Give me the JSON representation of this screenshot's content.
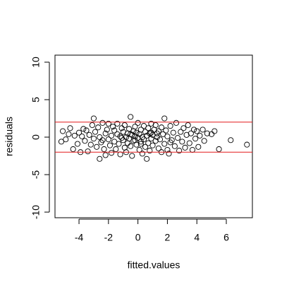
{
  "chart_data": {
    "type": "scatter",
    "x_label": "fitted.values",
    "y_label": "residuals",
    "xlim": [
      -5.63,
      7.77
    ],
    "ylim": [
      -10.75,
      10.94
    ],
    "xticks": [
      -4,
      -2,
      0,
      2,
      4,
      6
    ],
    "yticks": [
      -10,
      -5,
      0,
      5,
      10
    ],
    "color": "#000000",
    "hlines": [
      2,
      -2
    ],
    "hline_color": "#e41a1c",
    "x": [
      -5.1,
      -5.2,
      -4.9,
      -4.7,
      -4.6,
      -4.4,
      -4.3,
      -4.1,
      -4.0,
      -3.9,
      -3.8,
      -3.7,
      -3.6,
      -3.5,
      -3.4,
      -3.3,
      -3.2,
      -3.1,
      -3.0,
      -3.0,
      -2.9,
      -2.8,
      -2.7,
      -2.6,
      -2.6,
      -2.5,
      -2.4,
      -2.3,
      -2.2,
      -2.2,
      -2.1,
      -2.0,
      -2.0,
      -1.9,
      -1.8,
      -1.8,
      -1.7,
      -1.6,
      -1.6,
      -1.5,
      -1.4,
      -1.4,
      -1.3,
      -1.2,
      -1.2,
      -1.1,
      -1.0,
      -1.0,
      -0.9,
      -0.9,
      -0.8,
      -0.8,
      -0.7,
      -0.7,
      -0.6,
      -0.6,
      -0.5,
      -0.5,
      -0.4,
      -0.4,
      -0.3,
      -0.3,
      -0.2,
      -0.2,
      -0.1,
      -0.1,
      0.0,
      0.0,
      0.1,
      0.1,
      0.2,
      0.2,
      0.3,
      0.3,
      0.4,
      0.4,
      0.5,
      0.5,
      0.6,
      0.6,
      0.7,
      0.7,
      0.8,
      0.8,
      0.9,
      0.9,
      1.0,
      1.0,
      1.1,
      1.2,
      1.2,
      1.3,
      1.4,
      1.4,
      1.5,
      1.6,
      1.6,
      1.7,
      1.8,
      1.8,
      1.9,
      2.0,
      2.0,
      2.1,
      2.2,
      2.3,
      2.4,
      2.5,
      2.6,
      2.7,
      2.8,
      2.9,
      3.0,
      3.1,
      3.2,
      3.3,
      3.4,
      3.5,
      3.6,
      3.7,
      3.8,
      3.9,
      4.0,
      4.1,
      4.2,
      4.4,
      4.5,
      4.7,
      5.0,
      5.2,
      5.5,
      6.3,
      7.4,
      -0.5,
      0.2,
      -1.1,
      0.9,
      -0.2,
      1.3,
      -2.4,
      2.2
    ],
    "y": [
      0.8,
      -0.6,
      -0.3,
      0.4,
      1.2,
      -1.6,
      0.2,
      -0.9,
      0.6,
      -2.0,
      0.1,
      1.1,
      -0.5,
      0.9,
      -1.9,
      0.3,
      -1.0,
      1.6,
      2.5,
      -0.2,
      0.7,
      -1.3,
      1.3,
      -2.9,
      0.0,
      -0.7,
      1.9,
      -1.6,
      0.5,
      -2.4,
      1.0,
      -0.3,
      1.8,
      -1.1,
      0.2,
      -2.1,
      1.4,
      -0.6,
      0.9,
      -1.6,
      0.4,
      1.8,
      -0.9,
      0.1,
      -2.3,
      1.2,
      -0.4,
      0.7,
      -1.4,
      1.6,
      0.0,
      -2.0,
      0.5,
      -0.8,
      1.1,
      -0.2,
      2.7,
      -1.2,
      0.3,
      -2.5,
      0.8,
      -0.5,
      1.4,
      0.1,
      -1.0,
      0.6,
      -0.1,
      1.9,
      -1.7,
      0.4,
      -0.6,
      1.0,
      0.0,
      -2.2,
      1.5,
      -0.3,
      0.7,
      -1.3,
      -2.9,
      0.2,
      1.2,
      -0.8,
      0.5,
      -1.8,
      1.8,
      -0.2,
      0.3,
      -1.1,
      1.0,
      -0.5,
      1.6,
      0.0,
      -1.5,
      0.8,
      -0.3,
      1.3,
      -2.0,
      0.4,
      2.5,
      -0.9,
      0.9,
      -1.7,
      0.1,
      -2.2,
      1.5,
      -0.4,
      0.6,
      -1.2,
      1.9,
      -0.1,
      -1.8,
      0.7,
      -0.6,
      1.2,
      -1.4,
      0.3,
      1.6,
      -0.8,
      0.5,
      -1.7,
      1.0,
      -0.2,
      0.8,
      -1.3,
      0.2,
      1.0,
      -0.5,
      0.5,
      0.4,
      0.8,
      -1.6,
      -0.4,
      -1.0,
      0.4,
      -0.9,
      -0.1,
      0.6,
      -0.4,
      0.5,
      -0.4,
      -0.7
    ]
  }
}
